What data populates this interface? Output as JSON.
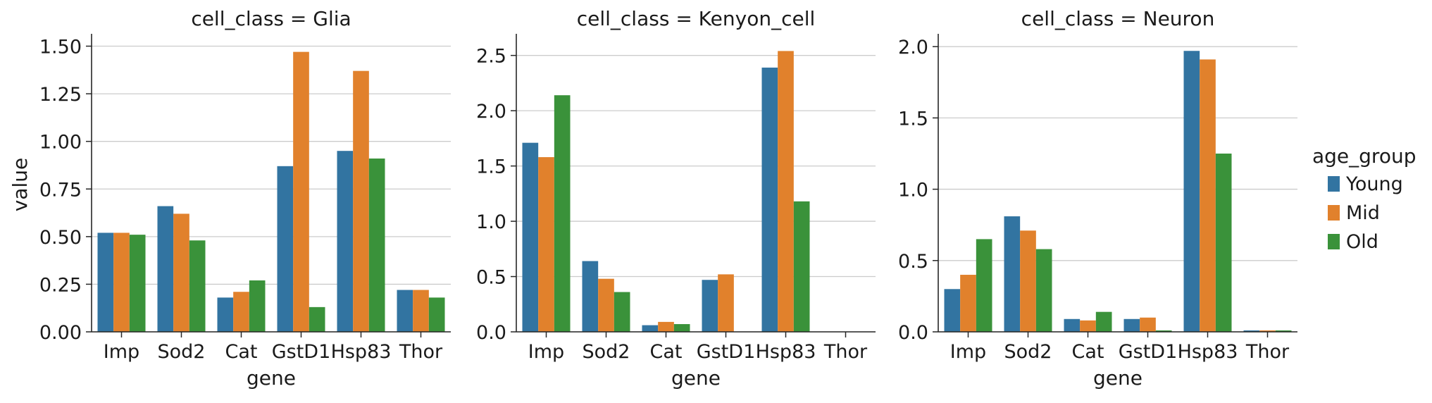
{
  "colors": {
    "Young": "#3274a1",
    "Mid": "#e1812c",
    "Old": "#3a923a",
    "grid": "#cccccc",
    "axis": "#262626"
  },
  "chart_data": {
    "type": "bar",
    "xlabel": "gene",
    "ylabel": "value",
    "categories": [
      "Imp",
      "Sod2",
      "Cat",
      "GstD1",
      "Hsp83",
      "Thor"
    ],
    "legend": {
      "title": "age_group",
      "placement": "right",
      "entries": [
        "Young",
        "Mid",
        "Old"
      ]
    },
    "grid": "horizontal",
    "facets": [
      {
        "title": "cell_class = Glia",
        "ylim": [
          0,
          1.55
        ],
        "yticks": [
          0,
          0.25,
          0.5,
          0.75,
          1.0,
          1.25,
          1.5
        ],
        "ytick_labels": [
          "0.00",
          "0.25",
          "0.50",
          "0.75",
          "1.00",
          "1.25",
          "1.50"
        ],
        "series": [
          {
            "name": "Young",
            "values": [
              0.52,
              0.66,
              0.18,
              0.87,
              0.95,
              0.22
            ]
          },
          {
            "name": "Mid",
            "values": [
              0.52,
              0.62,
              0.21,
              1.47,
              1.37,
              0.22
            ]
          },
          {
            "name": "Old",
            "values": [
              0.51,
              0.48,
              0.27,
              0.13,
              0.91,
              0.18
            ]
          }
        ]
      },
      {
        "title": "cell_class = Kenyon_cell",
        "ylim": [
          0,
          2.67
        ],
        "yticks": [
          0,
          0.5,
          1.0,
          1.5,
          2.0,
          2.5
        ],
        "ytick_labels": [
          "0.0",
          "0.5",
          "1.0",
          "1.5",
          "2.0",
          "2.5"
        ],
        "series": [
          {
            "name": "Young",
            "values": [
              1.71,
              0.64,
              0.06,
              0.47,
              2.39,
              0.0
            ]
          },
          {
            "name": "Mid",
            "values": [
              1.58,
              0.48,
              0.09,
              0.52,
              2.54,
              0.0
            ]
          },
          {
            "name": "Old",
            "values": [
              2.14,
              0.36,
              0.07,
              0.0,
              1.18,
              0.0
            ]
          }
        ]
      },
      {
        "title": "cell_class = Neuron",
        "ylim": [
          0,
          2.07
        ],
        "yticks": [
          0,
          0.5,
          1.0,
          1.5,
          2.0
        ],
        "ytick_labels": [
          "0.0",
          "0.5",
          "1.0",
          "1.5",
          "2.0"
        ],
        "series": [
          {
            "name": "Young",
            "values": [
              0.3,
              0.81,
              0.09,
              0.09,
              1.97,
              0.01
            ]
          },
          {
            "name": "Mid",
            "values": [
              0.4,
              0.71,
              0.08,
              0.1,
              1.91,
              0.01
            ]
          },
          {
            "name": "Old",
            "values": [
              0.65,
              0.58,
              0.14,
              0.01,
              1.25,
              0.01
            ]
          }
        ]
      }
    ]
  }
}
